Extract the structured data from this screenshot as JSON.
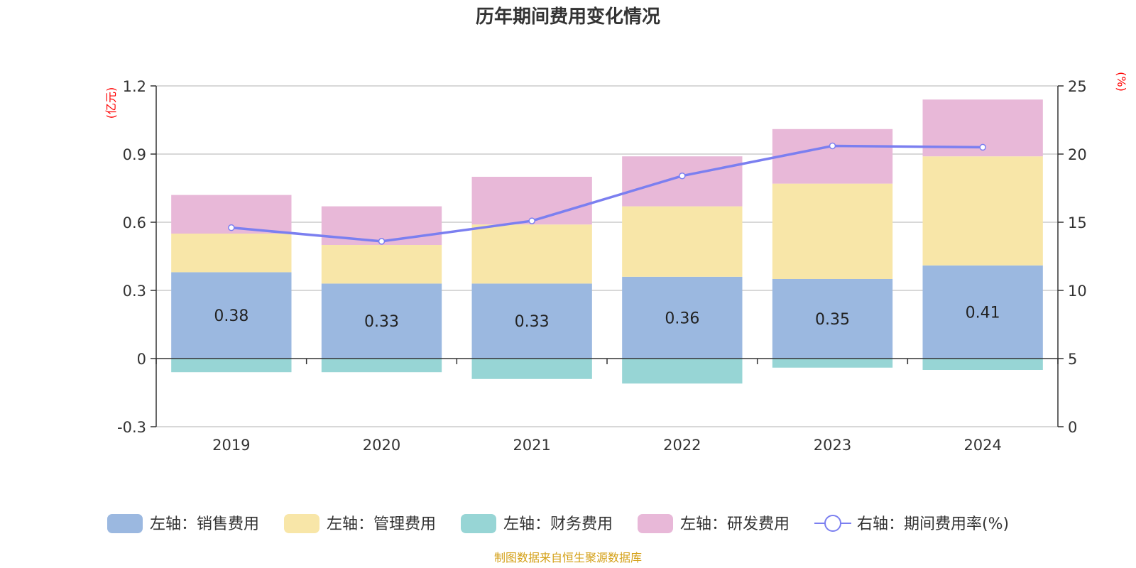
{
  "chart_data": {
    "type": "bar",
    "title": "历年期间费用变化情况",
    "categories": [
      "2019",
      "2020",
      "2021",
      "2022",
      "2023",
      "2024"
    ],
    "left_axis": {
      "unit": "(亿元)",
      "ylim": [
        -0.3,
        1.2
      ],
      "ticks": [
        "1.2",
        "0.9",
        "0.6",
        "0.3",
        "0",
        "-0.3"
      ],
      "tick_values": [
        1.2,
        0.9,
        0.6,
        0.3,
        0,
        -0.3
      ]
    },
    "right_axis": {
      "unit": "(%)",
      "ylim": [
        0,
        25
      ],
      "ticks": [
        "25",
        "20",
        "15",
        "10",
        "5",
        "0"
      ],
      "tick_values": [
        25,
        20,
        15,
        10,
        5,
        0
      ]
    },
    "series": [
      {
        "name": "左轴：销售费用",
        "axis": "left",
        "color": "#9bb8e0",
        "values": [
          0.38,
          0.33,
          0.33,
          0.36,
          0.35,
          0.41
        ],
        "labels": [
          "0.38",
          "0.33",
          "0.33",
          "0.36",
          "0.35",
          "0.41"
        ]
      },
      {
        "name": "左轴：管理费用",
        "axis": "left",
        "color": "#f8e6a8",
        "values": [
          0.17,
          0.17,
          0.26,
          0.31,
          0.42,
          0.48
        ]
      },
      {
        "name": "左轴：财务费用",
        "axis": "left",
        "color": "#97d5d5",
        "values": [
          -0.06,
          -0.06,
          -0.09,
          -0.11,
          -0.04,
          -0.05
        ]
      },
      {
        "name": "左轴：研发费用",
        "axis": "left",
        "color": "#e8b8d8",
        "values": [
          0.17,
          0.17,
          0.21,
          0.22,
          0.24,
          0.25
        ]
      },
      {
        "name": "右轴：期间费用率(%)",
        "axis": "right",
        "type": "line",
        "color": "#7b7ff0",
        "values": [
          14.6,
          13.6,
          15.1,
          18.4,
          20.6,
          20.5
        ]
      }
    ],
    "source_note": "制图数据来自恒生聚源数据库"
  }
}
